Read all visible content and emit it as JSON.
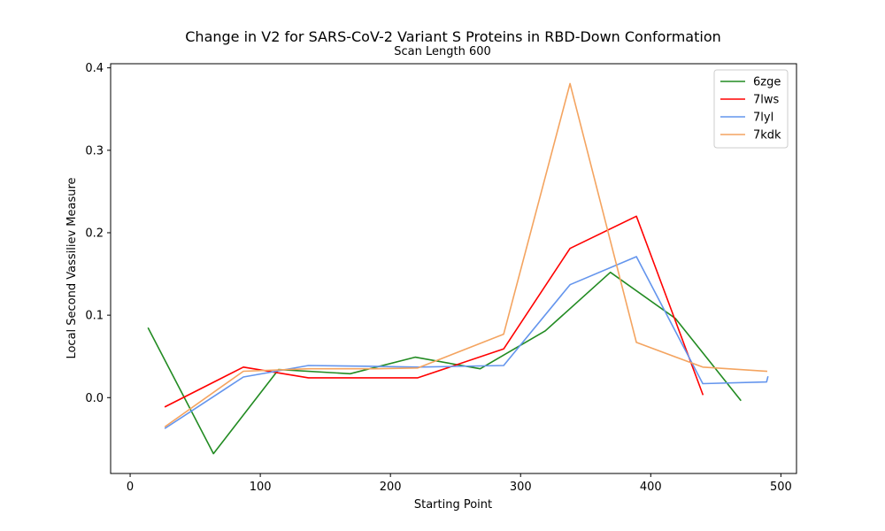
{
  "chart_data": {
    "type": "line",
    "title": "Change in V2 for SARS-CoV-2 Variant S Proteins in RBD-Down Conformation",
    "subtitle": "Scan Length 600",
    "xlabel": "Starting Point",
    "ylabel": "Local Second Vassiliev Measure",
    "xlim": [
      -15,
      512
    ],
    "ylim": [
      -0.092,
      0.405
    ],
    "xticks": [
      0,
      100,
      200,
      300,
      400,
      500
    ],
    "yticks": [
      0.0,
      0.1,
      0.2,
      0.3,
      0.4
    ],
    "ytick_labels": [
      "0.0",
      "0.1",
      "0.2",
      "0.3",
      "0.4"
    ],
    "grid": false,
    "legend_position": "top-right",
    "series": [
      {
        "name": "6zge",
        "color": "#228b22",
        "x": [
          14,
          64,
          114,
          169,
          219,
          269,
          319,
          369,
          419,
          469
        ],
        "y": [
          0.084,
          -0.068,
          0.034,
          0.029,
          0.049,
          0.035,
          0.081,
          0.152,
          0.096,
          -0.003
        ]
      },
      {
        "name": "7lws",
        "color": "#ff0000",
        "x": [
          27,
          87,
          137,
          187,
          221,
          287,
          338,
          389,
          440
        ],
        "y": [
          -0.011,
          0.037,
          0.024,
          0.024,
          0.024,
          0.059,
          0.181,
          0.22,
          0.004
        ]
      },
      {
        "name": "7lyl",
        "color": "#6495ed",
        "x": [
          27,
          87,
          137,
          187,
          221,
          287,
          338,
          389,
          440,
          489,
          490
        ],
        "y": [
          -0.037,
          0.025,
          0.039,
          0.038,
          0.037,
          0.039,
          0.137,
          0.171,
          0.017,
          0.019,
          0.025
        ]
      },
      {
        "name": "7kdk",
        "color": "#f4a460",
        "x": [
          27,
          87,
          137,
          187,
          221,
          287,
          338,
          389,
          440,
          489
        ],
        "y": [
          -0.035,
          0.032,
          0.035,
          0.035,
          0.036,
          0.077,
          0.381,
          0.067,
          0.037,
          0.032
        ]
      }
    ]
  }
}
